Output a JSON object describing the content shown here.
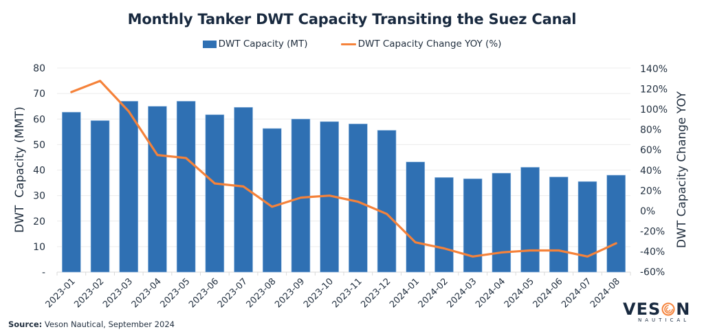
{
  "chart_data": {
    "type": "bar",
    "title": "Monthly Tanker DWT Capacity Transiting the Suez Canal",
    "categories": [
      "2023-01",
      "2023-02",
      "2023-03",
      "2023-04",
      "2023-05",
      "2023-06",
      "2023-07",
      "2023-08",
      "2023-09",
      "2023-10",
      "2023-11",
      "2023-12",
      "2024-01",
      "2024-02",
      "2024-03",
      "2024-04",
      "2024-05",
      "2024-06",
      "2024-07",
      "2024-08"
    ],
    "series": [
      {
        "name": "DWT Capacity (MT)",
        "type": "bar",
        "axis": "left",
        "color": "#2f70b3",
        "values": [
          62.7,
          59.4,
          67.0,
          65.0,
          67.0,
          61.7,
          64.6,
          56.3,
          60.0,
          59.0,
          58.1,
          55.6,
          43.2,
          37.1,
          36.6,
          38.8,
          41.1,
          37.3,
          35.5,
          38.0
        ]
      },
      {
        "name": "DWT Capacity Change YOY (%)",
        "type": "line",
        "axis": "right",
        "color": "#f5823a",
        "values": [
          117,
          128,
          98,
          55,
          52,
          27,
          24,
          4,
          13,
          15,
          9,
          -3,
          -31,
          -37,
          -45,
          -41,
          -39,
          -39,
          -45,
          -32
        ]
      }
    ],
    "ylabel": "DWT  Capacity (MMT)",
    "ylabel_right": "DWT Capacity Change YOY",
    "xlabel": "",
    "ylim": [
      0,
      80
    ],
    "ylim_right": [
      -60,
      140
    ],
    "yticks": [
      "-",
      "10",
      "20",
      "30",
      "40",
      "50",
      "60",
      "70",
      "80"
    ],
    "yticks_right": [
      "-60%",
      "-40%",
      "-20%",
      "0%",
      "20%",
      "40%",
      "60%",
      "80%",
      "100%",
      "120%",
      "140%"
    ],
    "grid": true,
    "legend_position": "top-center"
  },
  "legend": {
    "bar_label": "DWT Capacity (MT)",
    "line_label": "DWT Capacity Change YOY (%)"
  },
  "footer": {
    "source_label": "Source:",
    "source_text": " Veson Nautical, September 2024"
  },
  "logo": {
    "word_left": "VES",
    "word_right": "N",
    "subtitle": "NAUTICAL",
    "accent": "#f5823a"
  }
}
